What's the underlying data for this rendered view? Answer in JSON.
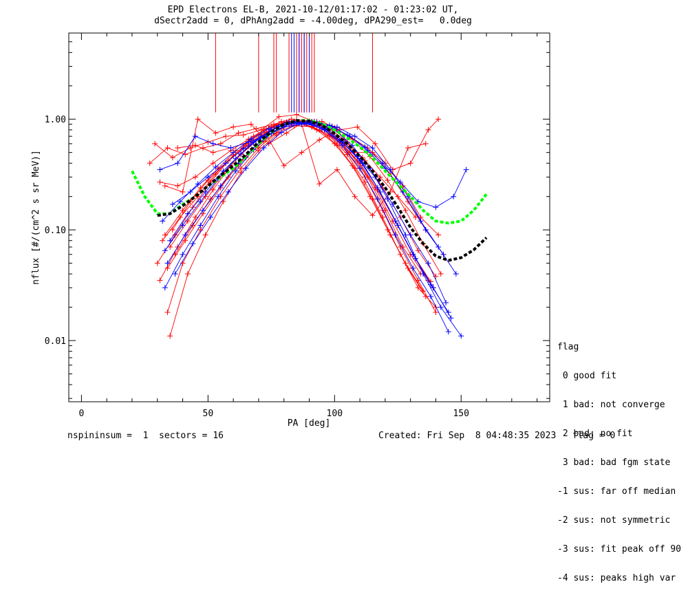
{
  "title": {
    "line1": "EPD Electrons EL-B, 2021-10-12/01:17:02 - 01:23:02 UT,",
    "line2": "dSectr2add = 0, dPhAng2add = -4.00deg, dPA290_est=   0.0deg"
  },
  "footer": {
    "left": "nspininsum =  1  sectors = 16",
    "right": "Created: Fri Sep  8 04:48:35 2023   flag = 0"
  },
  "flag_legend": {
    "title": "flag",
    "entries": [
      " 0 good fit",
      " 1 bad: not converge",
      " 2 bad: no fit",
      " 3 bad: bad fgm state",
      "-1 sus: far off median",
      "-2 sus: not symmetric",
      "-3 sus: fit peak off 90",
      "-4 sus: peaks high var"
    ]
  },
  "colors": {
    "red": "#ff0000",
    "blue": "#0000ff",
    "green": "#00ff00",
    "black": "#000000"
  },
  "chart_data": {
    "type": "line",
    "xlabel": "PA [deg]",
    "ylabel": "nflux [#/(cm^2 s sr MeV)]",
    "x_ticks": [
      0,
      50,
      100,
      150
    ],
    "x_tick_labels": [
      "0",
      "50",
      "100",
      "150"
    ],
    "y_ticks": [
      0.01,
      0.1,
      1.0
    ],
    "y_tick_labels": [
      "0.01",
      "0.10",
      "1.00"
    ],
    "xlim": [
      -5,
      185
    ],
    "ylim": [
      0.0028,
      6.0
    ],
    "y_scale": "log",
    "peak_lines": {
      "red_x": [
        53,
        70,
        76,
        77,
        82,
        85,
        86,
        87,
        88,
        89,
        90,
        91,
        92,
        115
      ],
      "blue_x": [
        83,
        84,
        86,
        88,
        90
      ],
      "top": 6.0,
      "bottom": 1.15
    },
    "fit_curves": [
      {
        "color": "green",
        "x": [
          20,
          25,
          30,
          35,
          40,
          45,
          50,
          55,
          60,
          65,
          70,
          75,
          80,
          85,
          90,
          95,
          100,
          105,
          110,
          115,
          120,
          125,
          130,
          135,
          140,
          145,
          150,
          155,
          160
        ],
        "y": [
          0.34,
          0.2,
          0.14,
          0.14,
          0.17,
          0.2,
          0.25,
          0.3,
          0.36,
          0.46,
          0.6,
          0.76,
          0.9,
          0.97,
          0.97,
          0.91,
          0.8,
          0.68,
          0.56,
          0.45,
          0.34,
          0.26,
          0.2,
          0.15,
          0.12,
          0.115,
          0.12,
          0.15,
          0.21
        ]
      },
      {
        "color": "black",
        "x": [
          30,
          35,
          40,
          45,
          50,
          55,
          60,
          65,
          70,
          75,
          80,
          85,
          90,
          95,
          100,
          105,
          110,
          115,
          120,
          125,
          130,
          135,
          140,
          145,
          150,
          155,
          160
        ],
        "y": [
          0.135,
          0.14,
          0.165,
          0.2,
          0.25,
          0.31,
          0.38,
          0.48,
          0.62,
          0.77,
          0.9,
          0.97,
          0.96,
          0.88,
          0.74,
          0.6,
          0.46,
          0.34,
          0.24,
          0.16,
          0.105,
          0.075,
          0.058,
          0.053,
          0.056,
          0.066,
          0.085
        ]
      }
    ],
    "series": [
      {
        "color": "red",
        "x": [
          34,
          40,
          47,
          55,
          63,
          70,
          77,
          84,
          91,
          98,
          105,
          112,
          119,
          126,
          133,
          140
        ],
        "y": [
          0.018,
          0.05,
          0.1,
          0.2,
          0.36,
          0.55,
          0.75,
          0.88,
          0.85,
          0.7,
          0.48,
          0.27,
          0.13,
          0.06,
          0.03,
          0.02
        ]
      },
      {
        "color": "red",
        "x": [
          35,
          42,
          49,
          56,
          63,
          70,
          77,
          84,
          91,
          98,
          105,
          112,
          119,
          126,
          133,
          140
        ],
        "y": [
          0.011,
          0.04,
          0.09,
          0.18,
          0.33,
          0.52,
          0.72,
          0.87,
          0.86,
          0.72,
          0.5,
          0.3,
          0.15,
          0.07,
          0.035,
          0.018
        ]
      },
      {
        "color": "red",
        "x": [
          31,
          38,
          45,
          52,
          59,
          66,
          73,
          80,
          87,
          94,
          101,
          108,
          115,
          122,
          129,
          136
        ],
        "y": [
          0.035,
          0.07,
          0.13,
          0.23,
          0.38,
          0.57,
          0.76,
          0.9,
          0.92,
          0.8,
          0.58,
          0.36,
          0.19,
          0.09,
          0.045,
          0.025
        ]
      },
      {
        "color": "red",
        "x": [
          30,
          37,
          44,
          51,
          58,
          65,
          72,
          79,
          86,
          93,
          100,
          107,
          114,
          121,
          128,
          135
        ],
        "y": [
          0.05,
          0.09,
          0.16,
          0.27,
          0.42,
          0.6,
          0.8,
          0.95,
          0.93,
          0.8,
          0.6,
          0.38,
          0.2,
          0.1,
          0.05,
          0.028
        ]
      },
      {
        "color": "red",
        "x": [
          32,
          39,
          46,
          53,
          60,
          67,
          74,
          81,
          88,
          95,
          102,
          109,
          116,
          123,
          130,
          137
        ],
        "y": [
          0.08,
          0.13,
          0.2,
          0.32,
          0.47,
          0.64,
          0.82,
          0.94,
          0.93,
          0.82,
          0.62,
          0.42,
          0.24,
          0.12,
          0.06,
          0.035
        ]
      },
      {
        "color": "red",
        "x": [
          29,
          36,
          43,
          50,
          57,
          64,
          71,
          78,
          85,
          92,
          99,
          106,
          113,
          120,
          127,
          134
        ],
        "y": [
          0.6,
          0.45,
          0.55,
          0.62,
          0.7,
          0.72,
          0.8,
          1.05,
          1.1,
          0.95,
          0.7,
          0.5,
          0.3,
          0.15,
          0.07,
          0.04
        ]
      },
      {
        "color": "red",
        "x": [
          27,
          34,
          41,
          48,
          55,
          62,
          69,
          76,
          83,
          90,
          97,
          104,
          111,
          118,
          125,
          132
        ],
        "y": [
          0.4,
          0.55,
          0.48,
          0.55,
          0.6,
          0.75,
          0.82,
          0.9,
          1.0,
          0.96,
          0.85,
          0.65,
          0.45,
          0.3,
          0.2,
          0.13
        ]
      },
      {
        "color": "red",
        "x": [
          33,
          40,
          46,
          53,
          60,
          67,
          74,
          81,
          88,
          95,
          102,
          109,
          116,
          123,
          130,
          137,
          141
        ],
        "y": [
          0.25,
          0.22,
          1.0,
          0.75,
          0.85,
          0.9,
          0.6,
          0.75,
          0.95,
          0.95,
          0.8,
          0.85,
          0.6,
          0.35,
          0.4,
          0.8,
          1.0
        ]
      },
      {
        "color": "red",
        "x": [
          36,
          43,
          50,
          57,
          64,
          71,
          78,
          85,
          92,
          99,
          106,
          113,
          120,
          127,
          134,
          141
        ],
        "y": [
          0.1,
          0.18,
          0.28,
          0.4,
          0.55,
          0.72,
          0.9,
          0.98,
          0.95,
          0.86,
          0.7,
          0.55,
          0.4,
          0.25,
          0.13,
          0.09
        ]
      },
      {
        "color": "red",
        "x": [
          37,
          44,
          51,
          58,
          65,
          72,
          79,
          86,
          93,
          100,
          107,
          114,
          121,
          128,
          135,
          142
        ],
        "y": [
          0.06,
          0.11,
          0.19,
          0.3,
          0.45,
          0.63,
          0.82,
          0.95,
          0.95,
          0.84,
          0.66,
          0.46,
          0.28,
          0.15,
          0.075,
          0.04
        ]
      },
      {
        "color": "red",
        "x": [
          34,
          41,
          48,
          55,
          62,
          69,
          76,
          83,
          90,
          97,
          104,
          111,
          118,
          125,
          132,
          139
        ],
        "y": [
          0.045,
          0.08,
          0.14,
          0.24,
          0.39,
          0.58,
          0.78,
          0.92,
          0.93,
          0.8,
          0.6,
          0.4,
          0.22,
          0.11,
          0.055,
          0.03
        ]
      },
      {
        "color": "red",
        "x": [
          38,
          45,
          52,
          59,
          66,
          73,
          80,
          87,
          94,
          101,
          108,
          115,
          122,
          129,
          136,
          143
        ],
        "y": [
          0.55,
          0.58,
          0.5,
          0.55,
          0.62,
          0.72,
          0.38,
          0.5,
          0.65,
          0.8,
          0.5,
          0.5,
          0.32,
          0.18,
          0.1,
          0.06
        ]
      },
      {
        "color": "red",
        "x": [
          31,
          38,
          45,
          52,
          59,
          66,
          73,
          80,
          87,
          94,
          101,
          108,
          115,
          122,
          129,
          136
        ],
        "y": [
          0.27,
          0.25,
          0.3,
          0.4,
          0.52,
          0.66,
          0.82,
          0.93,
          0.9,
          0.26,
          0.35,
          0.2,
          0.135,
          0.22,
          0.55,
          0.6
        ]
      },
      {
        "color": "red",
        "x": [
          35,
          42,
          49,
          56,
          63,
          70,
          77,
          84,
          91,
          98,
          105,
          112,
          119,
          126,
          133,
          140
        ],
        "y": [
          0.07,
          0.12,
          0.2,
          0.32,
          0.48,
          0.66,
          0.84,
          0.96,
          0.94,
          0.82,
          0.62,
          0.42,
          0.24,
          0.13,
          0.065,
          0.038
        ]
      },
      {
        "color": "red",
        "x": [
          33,
          40,
          47,
          54,
          61,
          68,
          75,
          82,
          89,
          96,
          103,
          110,
          117,
          124,
          131,
          138
        ],
        "y": [
          0.09,
          0.15,
          0.24,
          0.36,
          0.52,
          0.7,
          0.86,
          0.96,
          0.92,
          0.8,
          0.6,
          0.4,
          0.23,
          0.12,
          0.06,
          0.034
        ]
      },
      {
        "color": "blue",
        "x": [
          31,
          38,
          45,
          52,
          59,
          66,
          73,
          80,
          87,
          94,
          101,
          108,
          115,
          122,
          129,
          136,
          143
        ],
        "y": [
          0.35,
          0.4,
          0.7,
          0.6,
          0.55,
          0.62,
          0.7,
          0.85,
          0.9,
          0.92,
          0.85,
          0.7,
          0.55,
          0.35,
          0.2,
          0.1,
          0.06
        ]
      },
      {
        "color": "blue",
        "x": [
          33,
          40,
          47,
          54,
          61,
          68,
          75,
          82,
          89,
          96,
          103,
          110,
          117,
          124,
          131,
          138,
          145
        ],
        "y": [
          0.03,
          0.06,
          0.11,
          0.2,
          0.34,
          0.53,
          0.74,
          0.9,
          0.92,
          0.8,
          0.58,
          0.36,
          0.19,
          0.09,
          0.045,
          0.025,
          0.012
        ]
      },
      {
        "color": "blue",
        "x": [
          34,
          41,
          48,
          55,
          62,
          69,
          76,
          83,
          90,
          97,
          104,
          111,
          118,
          125,
          132,
          139,
          146
        ],
        "y": [
          0.05,
          0.09,
          0.15,
          0.25,
          0.4,
          0.58,
          0.78,
          0.92,
          0.93,
          0.82,
          0.62,
          0.4,
          0.22,
          0.11,
          0.055,
          0.03,
          0.016
        ]
      },
      {
        "color": "blue",
        "x": [
          36,
          43,
          50,
          57,
          64,
          71,
          78,
          85,
          92,
          99,
          106,
          113,
          120,
          127,
          134,
          141,
          148
        ],
        "y": [
          0.17,
          0.22,
          0.3,
          0.4,
          0.54,
          0.7,
          0.86,
          0.95,
          0.94,
          0.86,
          0.7,
          0.52,
          0.36,
          0.22,
          0.12,
          0.07,
          0.04
        ]
      },
      {
        "color": "blue",
        "x": [
          32,
          39,
          46,
          53,
          60,
          67,
          74,
          81,
          88,
          95,
          102,
          109,
          116,
          123,
          130,
          137,
          144
        ],
        "y": [
          0.12,
          0.18,
          0.26,
          0.37,
          0.5,
          0.66,
          0.82,
          0.93,
          0.92,
          0.82,
          0.64,
          0.46,
          0.3,
          0.17,
          0.09,
          0.05,
          0.022
        ]
      },
      {
        "color": "blue",
        "x": [
          35,
          42,
          49,
          56,
          63,
          70,
          77,
          84,
          91,
          98,
          105,
          112,
          119,
          126,
          133,
          140,
          147,
          152
        ],
        "y": [
          0.08,
          0.14,
          0.22,
          0.34,
          0.49,
          0.66,
          0.83,
          0.94,
          0.95,
          0.88,
          0.72,
          0.56,
          0.4,
          0.27,
          0.18,
          0.16,
          0.2,
          0.35
        ]
      },
      {
        "color": "blue",
        "x": [
          37,
          44,
          51,
          58,
          65,
          72,
          79,
          86,
          93,
          100,
          107,
          114,
          121,
          128,
          135,
          142,
          150
        ],
        "y": [
          0.04,
          0.075,
          0.13,
          0.22,
          0.36,
          0.55,
          0.76,
          0.92,
          0.93,
          0.8,
          0.58,
          0.36,
          0.19,
          0.09,
          0.04,
          0.02,
          0.011
        ]
      },
      {
        "color": "blue",
        "x": [
          33,
          40,
          47,
          54,
          61,
          68,
          75,
          82,
          89,
          96,
          103,
          110,
          117,
          124,
          131,
          138,
          145
        ],
        "y": [
          0.065,
          0.11,
          0.18,
          0.29,
          0.44,
          0.62,
          0.8,
          0.93,
          0.93,
          0.82,
          0.62,
          0.42,
          0.24,
          0.12,
          0.06,
          0.032,
          0.018
        ]
      }
    ]
  }
}
